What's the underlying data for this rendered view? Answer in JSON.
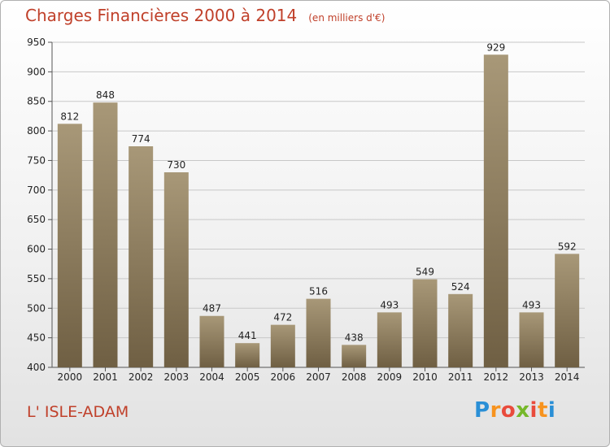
{
  "header": {
    "title": "Charges Financières 2000 à 2014",
    "unit": "(en milliers d'€)"
  },
  "footer": {
    "city": "L' ISLE-ADAM",
    "logo": [
      "P",
      "r",
      "o",
      "x",
      "i",
      "t",
      "i"
    ],
    "logo_colors": [
      "#2a8fd6",
      "#f7931e",
      "#e94b3c",
      "#76b82a",
      "#e94b3c",
      "#f7931e",
      "#2a8fd6"
    ]
  },
  "colors": {
    "bar_top": "#a89878",
    "bar_bottom": "#6f5f43",
    "grid": "#c8c8c8",
    "title": "#c0402a"
  },
  "chart_data": {
    "type": "bar",
    "categories": [
      "2000",
      "2001",
      "2002",
      "2003",
      "2004",
      "2005",
      "2006",
      "2007",
      "2008",
      "2009",
      "2010",
      "2011",
      "2012",
      "2013",
      "2014"
    ],
    "values": [
      812,
      848,
      774,
      730,
      487,
      441,
      472,
      516,
      438,
      493,
      549,
      524,
      929,
      493,
      592
    ],
    "ylim": [
      400,
      950
    ],
    "yticks": [
      400,
      450,
      500,
      550,
      600,
      650,
      700,
      750,
      800,
      850,
      900,
      950
    ],
    "grid": true
  }
}
